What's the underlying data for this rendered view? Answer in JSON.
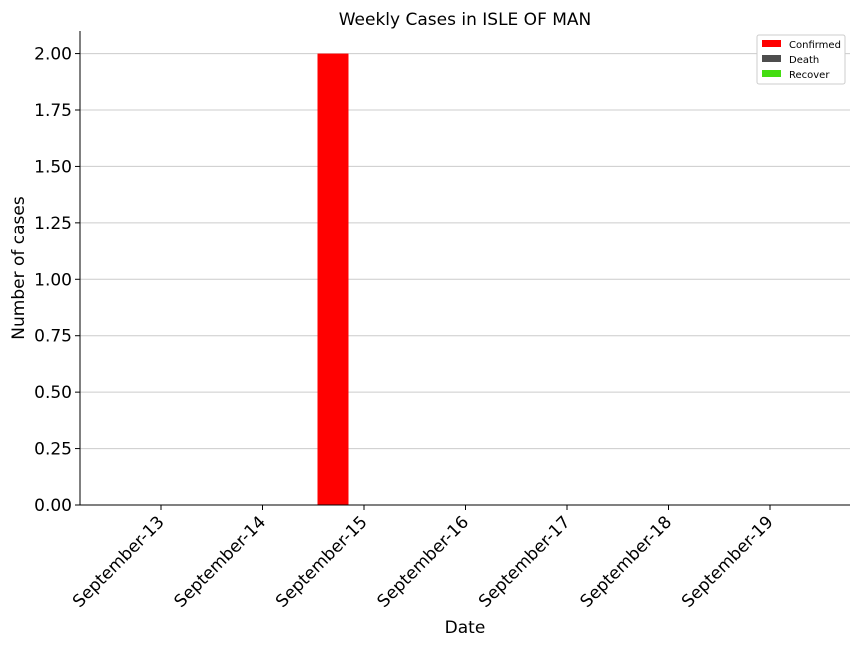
{
  "chart_data": {
    "type": "bar",
    "title": "Weekly Cases in ISLE OF MAN",
    "xlabel": "Date",
    "ylabel": "Number of cases",
    "categories": [
      "September-13",
      "September-14",
      "September-15",
      "September-16",
      "September-17",
      "September-18",
      "September-19"
    ],
    "series": [
      {
        "name": "Confirmed",
        "color": "#ff0000",
        "values": [
          0,
          0,
          2,
          0,
          0,
          0,
          0
        ]
      },
      {
        "name": "Death",
        "color": "#4d4d4d",
        "values": [
          0,
          0,
          0,
          0,
          0,
          0,
          0
        ]
      },
      {
        "name": "Recover",
        "color": "#44dd11",
        "values": [
          0,
          0,
          0,
          0,
          0,
          0,
          0
        ]
      }
    ],
    "ylim": [
      0,
      2.1
    ],
    "yticks": [
      "0.00",
      "0.25",
      "0.50",
      "0.75",
      "1.00",
      "1.25",
      "1.50",
      "1.75",
      "2.00"
    ],
    "grid": "horizontal",
    "legend": "top-right"
  }
}
